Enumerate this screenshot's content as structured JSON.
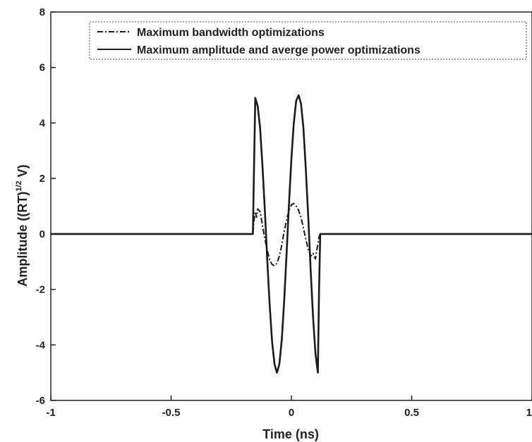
{
  "chart_data": {
    "type": "line",
    "xlabel": "Time (ns)",
    "ylabel_main": "Amplitude ((RT)",
    "ylabel_sup": "1/2",
    "ylabel_tail": " V)",
    "xlim": [
      -1,
      1
    ],
    "ylim": [
      -6,
      8
    ],
    "x_ticks": [
      -1,
      -0.5,
      0,
      0.5,
      1
    ],
    "x_tick_labels": [
      "-1",
      "-0.5",
      "0",
      "0.5",
      "1"
    ],
    "y_ticks": [
      -6,
      -4,
      -2,
      0,
      2,
      4,
      6,
      8
    ],
    "y_tick_labels": [
      "-6",
      "-4",
      "-2",
      "0",
      "2",
      "4",
      "6",
      "8"
    ],
    "grid": false,
    "legend_position": "top",
    "series": [
      {
        "name": "Maximum bandwidth optimizations",
        "style": "dash-dot",
        "x": [
          -1,
          -0.16,
          -0.155,
          -0.15,
          -0.145,
          -0.14,
          -0.13,
          -0.12,
          -0.11,
          -0.1,
          -0.09,
          -0.08,
          -0.07,
          -0.06,
          -0.05,
          -0.04,
          -0.03,
          -0.02,
          -0.01,
          0,
          0.01,
          0.02,
          0.03,
          0.04,
          0.05,
          0.06,
          0.07,
          0.08,
          0.09,
          0.1,
          0.105,
          0.11,
          0.115,
          0.12,
          1
        ],
        "y": [
          0,
          0,
          0.5,
          0.8,
          0.6,
          0.9,
          0.8,
          0.3,
          -0.2,
          -0.6,
          -0.95,
          -1.1,
          -1.15,
          -1.05,
          -0.8,
          -0.4,
          0.1,
          0.5,
          0.85,
          1.05,
          1.1,
          1.0,
          0.85,
          0.6,
          0.2,
          -0.2,
          -0.55,
          -0.8,
          -0.7,
          -0.9,
          -0.6,
          -0.4,
          -0.1,
          0,
          0
        ]
      },
      {
        "name": "Maximum amplitude and averge power optimizations",
        "style": "solid",
        "x": [
          -1,
          -0.16,
          -0.155,
          -0.15,
          -0.14,
          -0.13,
          -0.12,
          -0.11,
          -0.1,
          -0.09,
          -0.08,
          -0.07,
          -0.06,
          -0.05,
          -0.04,
          -0.03,
          -0.02,
          -0.01,
          0,
          0.01,
          0.02,
          0.03,
          0.04,
          0.05,
          0.06,
          0.07,
          0.08,
          0.09,
          0.1,
          0.11,
          0.115,
          0.12,
          1
        ],
        "y": [
          0,
          0,
          2.5,
          4.9,
          4.6,
          3.8,
          2.4,
          0.8,
          -1.0,
          -2.6,
          -3.9,
          -4.7,
          -5.0,
          -4.7,
          -3.8,
          -2.4,
          -0.7,
          1.1,
          2.7,
          4.0,
          4.8,
          5.0,
          4.7,
          3.8,
          2.3,
          0.6,
          -1.3,
          -3.0,
          -4.3,
          -5.0,
          -2.0,
          0,
          0
        ]
      }
    ]
  }
}
